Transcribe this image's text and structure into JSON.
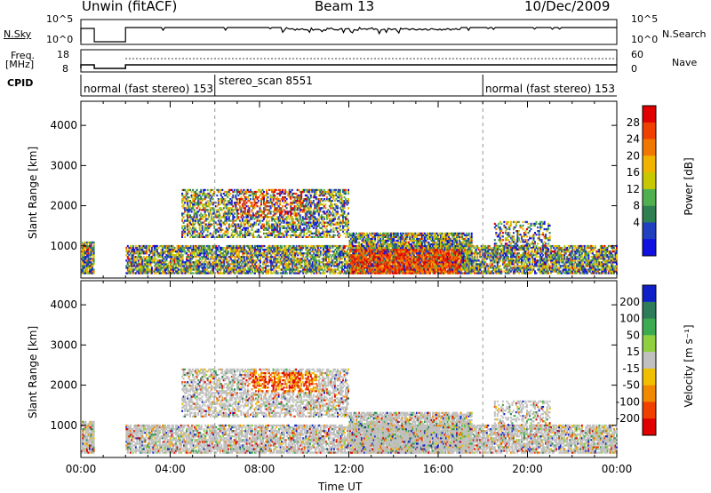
{
  "header": {
    "left_title": "Unwin (fitACF)",
    "center_title": "Beam 13",
    "right_title": "10/Dec/2009"
  },
  "strips": {
    "nsky_label": "N.Sky",
    "nsky_ticks": [
      "10^5",
      "10^0"
    ],
    "nsearch_label": "N.Search",
    "nsearch_ticks": [
      "10^5",
      "10^0"
    ],
    "freq_label_1": "Freq.",
    "freq_label_2": "[MHz]",
    "freq_ticks": [
      "18",
      "8"
    ],
    "nave_label": "Nave",
    "nave_ticks": [
      "60",
      "0"
    ],
    "cpid_label": "CPID",
    "cpid_segments": [
      "normal (fast stereo) 153",
      "stereo_scan 8551",
      "normal (fast stereo) 153"
    ]
  },
  "chart_data": [
    {
      "type": "heatmap",
      "panel": "power",
      "ylabel": "Slant Range [km]",
      "xlabel": "",
      "ylim": [
        200,
        4600
      ],
      "yticks": [
        1000,
        2000,
        3000,
        4000
      ],
      "xlim_hours": [
        0,
        24
      ],
      "colorbar_label": "Power [dB]",
      "colorbar_ticks": [
        "28",
        "24",
        "20",
        "16",
        "12",
        "8",
        "4"
      ],
      "colorbar_colors": [
        "#e00000",
        "#f04000",
        "#f07800",
        "#f0b400",
        "#c8c800",
        "#50b050",
        "#2f8050",
        "#2040c0",
        "#1010e0"
      ]
    },
    {
      "type": "heatmap",
      "panel": "velocity",
      "ylabel": "Slant Range [km]",
      "xlabel": "Time UT",
      "ylim": [
        200,
        4600
      ],
      "yticks": [
        1000,
        2000,
        3000,
        4000
      ],
      "xlim_hours": [
        0,
        24
      ],
      "xticks": [
        "00:00",
        "04:00",
        "08:00",
        "12:00",
        "16:00",
        "20:00",
        "00:00"
      ],
      "colorbar_label": "Velocity [m s⁻¹]",
      "colorbar_ticks": [
        "200",
        "100",
        "50",
        "15",
        "-15",
        "-50",
        "-100",
        "-200"
      ],
      "colorbar_colors": [
        "#1020c8",
        "#2e7d5a",
        "#3caa50",
        "#90d040",
        "#c0c0c0",
        "#f0c000",
        "#f08800",
        "#f04000",
        "#e00000"
      ]
    }
  ]
}
